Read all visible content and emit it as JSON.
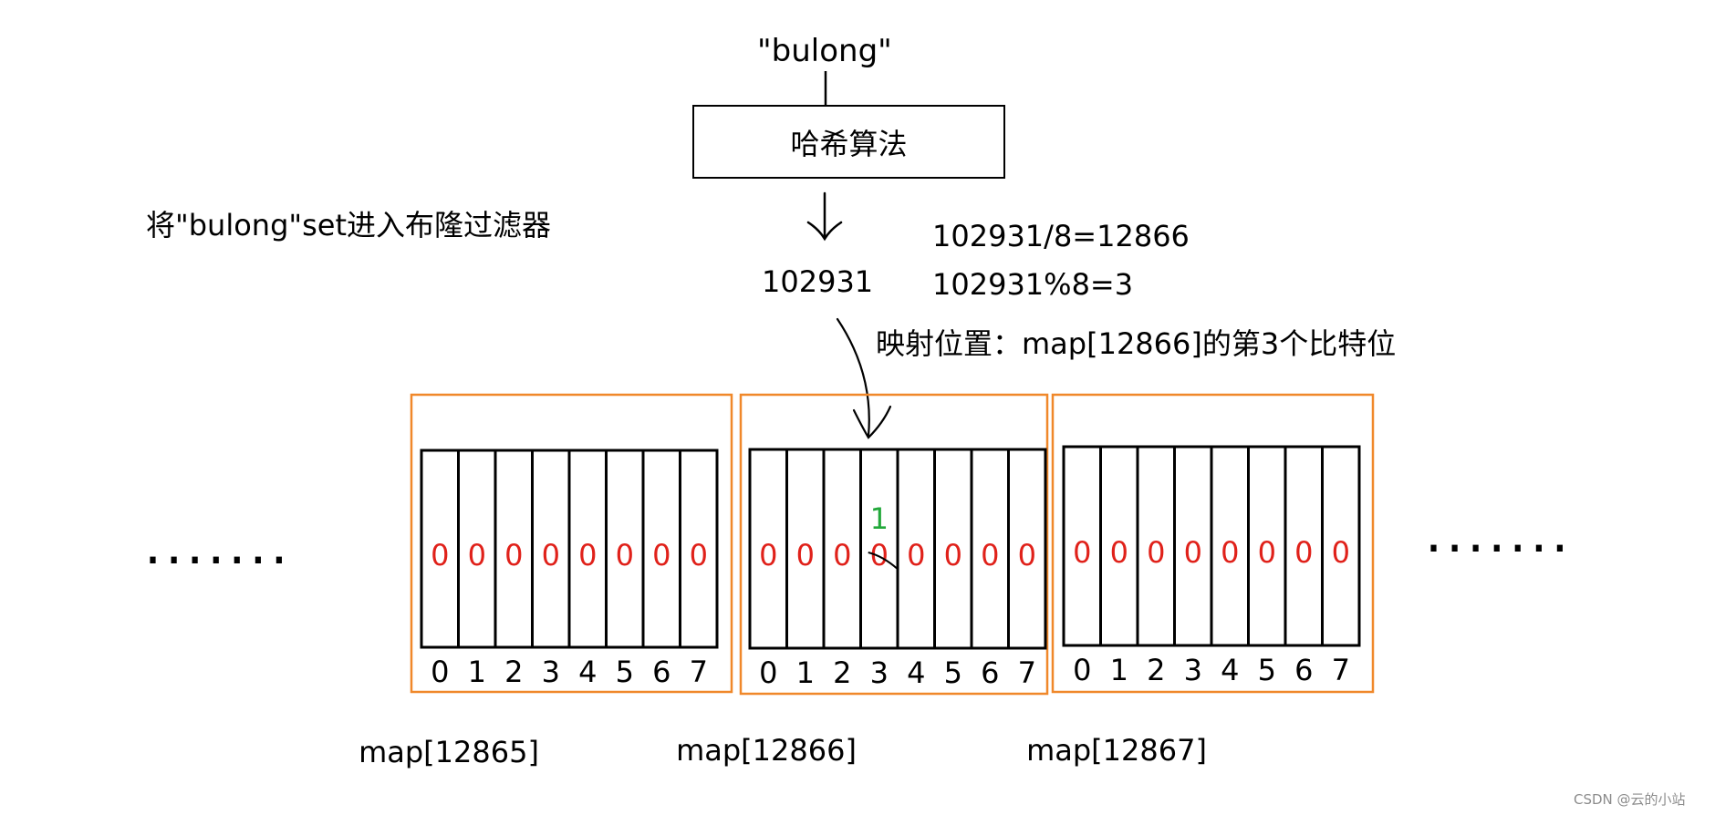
{
  "input": "\"bulong\"",
  "hash_box": "哈希算法",
  "caption": "将\"bulong\"set进入布隆过滤器",
  "hash_value": "102931",
  "calc_div": "102931/8=12866",
  "calc_mod": "102931%8=3",
  "mapping_note": "映射位置：map[12866]的第3个比特位",
  "bit_indices": [
    "0",
    "1",
    "2",
    "3",
    "4",
    "5",
    "6",
    "7"
  ],
  "maps": [
    {
      "label": "map[12865]",
      "bits": [
        "0",
        "0",
        "0",
        "0",
        "0",
        "0",
        "0",
        "0"
      ]
    },
    {
      "label": "map[12866]",
      "bits": [
        "0",
        "0",
        "0",
        "0",
        "0",
        "0",
        "0",
        "0"
      ],
      "set_bit_index": 3,
      "set_value": "1"
    },
    {
      "label": "map[12867]",
      "bits": [
        "0",
        "0",
        "0",
        "0",
        "0",
        "0",
        "0",
        "0"
      ]
    }
  ],
  "ellipsis_left": ".......",
  "ellipsis_right": ".......",
  "watermark": "CSDN @云的小站",
  "colors": {
    "group_border": "#f0882a",
    "bit_zero": "#e0211a",
    "bit_set": "#22a83a",
    "line": "#000000"
  }
}
